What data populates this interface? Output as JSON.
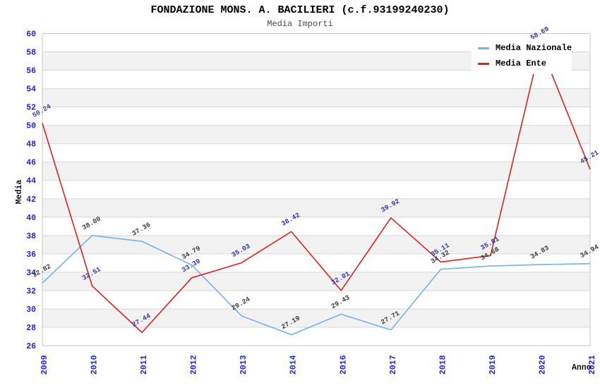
{
  "title": "FONDAZIONE MONS. A. BACILIERI (c.f.93199240230)",
  "subtitle": "Media Importi",
  "chart_data": {
    "type": "line",
    "categories": [
      "2009",
      "2010",
      "2011",
      "2012",
      "2013",
      "2014",
      "2016",
      "2017",
      "2018",
      "2019",
      "2020",
      "2021"
    ],
    "series": [
      {
        "name": "Media Nazionale",
        "color": "#78b0e8",
        "label_color": "#3d3d3d",
        "values": [
          32.82,
          38.0,
          37.36,
          34.79,
          29.24,
          27.19,
          29.43,
          27.71,
          34.32,
          34.68,
          34.83,
          34.94
        ]
      },
      {
        "name": "Media Ente",
        "color": "#e02020",
        "label_color": "#3434b3",
        "values": [
          50.24,
          32.51,
          27.44,
          33.39,
          35.03,
          38.42,
          32.01,
          39.92,
          35.11,
          35.81,
          58.69,
          45.21
        ]
      }
    ],
    "xlabel": "Anno",
    "ylabel": "Media",
    "ylim": [
      26,
      60
    ],
    "ytick_step": 2,
    "legend_position": "top-right",
    "grid": "horizontal-bands",
    "tick_label_color": "#2323d3",
    "band_color": "#f2f2f2",
    "gridline_color": "#d8d8d8",
    "border_color": "#c8c8c8"
  }
}
